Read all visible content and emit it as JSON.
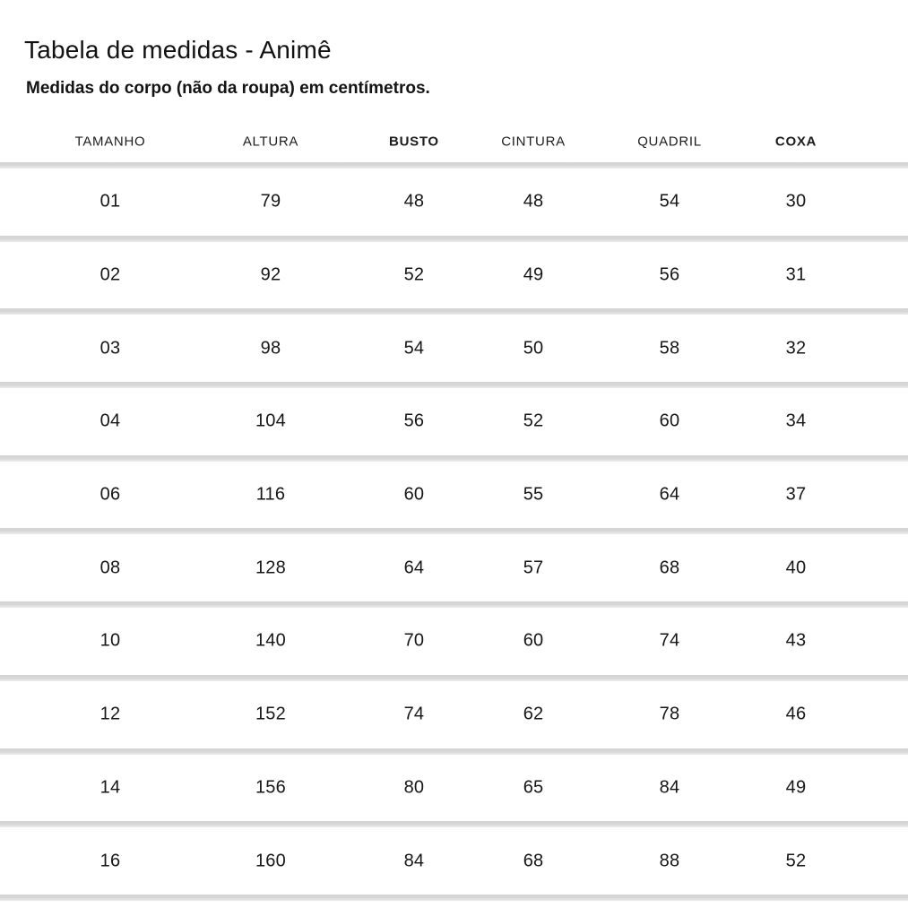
{
  "page": {
    "title": "Tabela de medidas - Animê",
    "subtitle": "Medidas do corpo (não da roupa) em centímetros."
  },
  "table": {
    "columns": [
      {
        "key": "tamanho",
        "label": "TAMANHO",
        "bold": false
      },
      {
        "key": "altura",
        "label": "ALTURA",
        "bold": false
      },
      {
        "key": "busto",
        "label": "BUSTO",
        "bold": true
      },
      {
        "key": "cintura",
        "label": "CINTURA",
        "bold": false
      },
      {
        "key": "quadril",
        "label": "QUADRIL",
        "bold": false
      },
      {
        "key": "coxa",
        "label": "COXA",
        "bold": true
      }
    ],
    "rows": [
      [
        "01",
        "79",
        "48",
        "48",
        "54",
        "30"
      ],
      [
        "02",
        "92",
        "52",
        "49",
        "56",
        "31"
      ],
      [
        "03",
        "98",
        "54",
        "50",
        "58",
        "32"
      ],
      [
        "04",
        "104",
        "56",
        "52",
        "60",
        "34"
      ],
      [
        "06",
        "116",
        "60",
        "55",
        "64",
        "37"
      ],
      [
        "08",
        "128",
        "64",
        "57",
        "68",
        "40"
      ],
      [
        "10",
        "140",
        "70",
        "60",
        "74",
        "43"
      ],
      [
        "12",
        "152",
        "74",
        "62",
        "78",
        "46"
      ],
      [
        "14",
        "156",
        "80",
        "65",
        "84",
        "49"
      ],
      [
        "16",
        "160",
        "84",
        "68",
        "88",
        "52"
      ]
    ],
    "unit_note": "cm"
  },
  "colors": {
    "background": "#ffffff",
    "text": "#1a1a1a",
    "divider": "#d9d9d9"
  }
}
